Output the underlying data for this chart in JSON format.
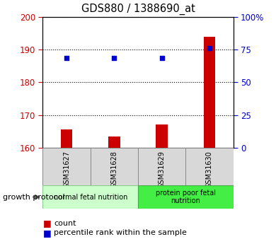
{
  "title": "GDS880 / 1388690_at",
  "samples": [
    "GSM31627",
    "GSM31628",
    "GSM31629",
    "GSM31630"
  ],
  "bar_values": [
    165.5,
    163.5,
    167.0,
    194.0
  ],
  "scatter_values": [
    187.5,
    187.5,
    187.5,
    190.5
  ],
  "ylim_left": [
    160,
    200
  ],
  "ylim_right": [
    0,
    100
  ],
  "yticks_left": [
    160,
    170,
    180,
    190,
    200
  ],
  "yticks_right": [
    0,
    25,
    50,
    75,
    100
  ],
  "ytick_labels_right": [
    "0",
    "25",
    "50",
    "75",
    "100%"
  ],
  "bar_color": "#cc0000",
  "scatter_color": "#0000cc",
  "bar_bottom": 160,
  "groups": [
    {
      "label": "normal fetal nutrition",
      "samples": [
        0,
        1
      ],
      "color": "#ccffcc",
      "border": "#88cc88"
    },
    {
      "label": "protein poor fetal\nnutrition",
      "samples": [
        2,
        3
      ],
      "color": "#44ee44",
      "border": "#44aa44"
    }
  ],
  "group_label": "growth protocol",
  "legend_bar_label": "count",
  "legend_scatter_label": "percentile rank within the sample",
  "tick_label_color_left": "#cc0000",
  "tick_label_color_right": "#0000cc"
}
